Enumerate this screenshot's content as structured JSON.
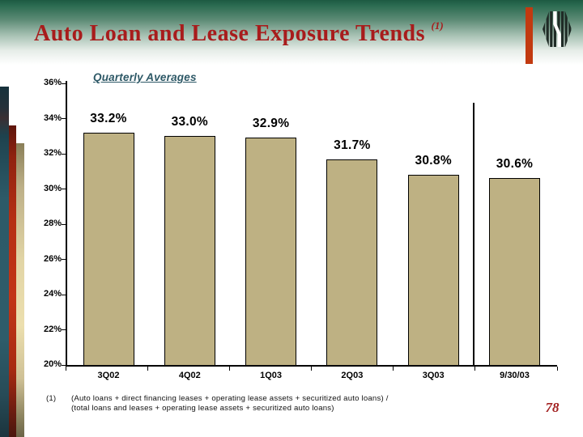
{
  "header": {
    "title": "Auto Loan and Lease Exposure Trends",
    "title_superscript": "(1)",
    "title_color": "#a81c1c",
    "band_top_color": "#1d5a42"
  },
  "logo": {
    "icon": "hexagon-stripes-logo",
    "color": "#1f2b26",
    "accent_stripe_color": "#c23a10"
  },
  "chart_data": {
    "type": "bar",
    "title": "Quarterly Averages",
    "categories": [
      "3Q02",
      "4Q02",
      "1Q03",
      "2Q03",
      "3Q03",
      "9/30/03"
    ],
    "values": [
      33.2,
      33.0,
      32.9,
      31.7,
      30.8,
      30.6
    ],
    "data_labels": [
      "33.2%",
      "33.0%",
      "32.9%",
      "31.7%",
      "30.8%",
      "30.6%"
    ],
    "xlabel": "",
    "ylabel": "",
    "ylim": [
      20,
      36
    ],
    "ytick_step": 2,
    "ytick_labels": [
      "20%",
      "22%",
      "24%",
      "26%",
      "28%",
      "30%",
      "32%",
      "34%",
      "36%"
    ],
    "grid": false,
    "legend": "none",
    "bar_color": "#beb183",
    "bar_border_color": "#000000",
    "separator_line_after_category": "3Q03"
  },
  "footnote": {
    "marker": "(1)",
    "line1": "(Auto loans + direct financing leases + operating lease assets + securitized auto loans) /",
    "line2": "(total loans and leases + operating lease assets + securitized auto loans)"
  },
  "page_number": "78",
  "accent_stripes": {
    "teal": "#2d5a68",
    "red": "#b52f14",
    "tan": "#e8dcae"
  }
}
